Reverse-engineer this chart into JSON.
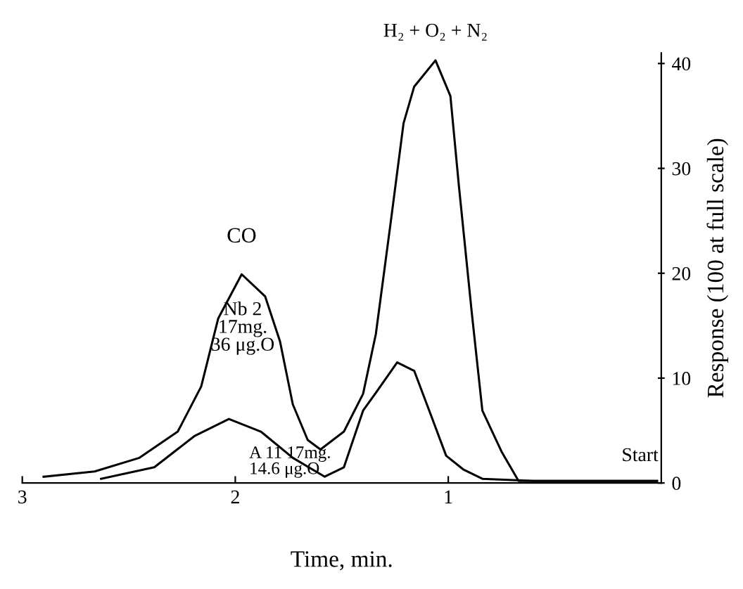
{
  "chart_data": {
    "type": "line",
    "xlabel": "Time, min.",
    "ylabel": "Response (100 at full scale)",
    "xlim": [
      3,
      0
    ],
    "ylim": [
      0,
      41
    ],
    "xticks": [
      3,
      2,
      1
    ],
    "yticks": [
      0,
      10,
      20,
      30,
      40
    ],
    "grid": false,
    "legend": false,
    "marker": "none",
    "line_style": "solid",
    "series": [
      {
        "color": "#000000",
        "x": [
          2.9,
          2.66,
          2.45,
          2.27,
          2.16,
          2.08,
          1.97,
          1.86,
          1.79,
          1.73,
          1.66,
          1.6,
          1.49,
          1.4,
          1.34,
          1.27,
          1.21,
          1.16,
          1.06,
          0.99,
          0.95,
          0.89,
          0.84,
          0.75,
          0.67,
          0.3,
          0.02
        ],
        "values": [
          0.6,
          1.1,
          2.4,
          4.9,
          9.2,
          15.7,
          19.9,
          17.8,
          13.5,
          7.5,
          4.1,
          3.2,
          4.9,
          8.5,
          14.2,
          24.9,
          34.3,
          37.8,
          40.3,
          36.9,
          28.3,
          16.3,
          6.9,
          3.0,
          0.2,
          0.2,
          0.2
        ]
      },
      {
        "color": "#000000",
        "x": [
          2.63,
          2.38,
          2.19,
          2.03,
          1.88,
          1.73,
          1.58,
          1.49,
          1.4,
          1.34,
          1.24,
          1.16,
          1.08,
          1.01,
          0.93,
          0.84,
          0.6,
          0.3,
          0.02
        ],
        "values": [
          0.4,
          1.5,
          4.5,
          6.1,
          4.9,
          2.4,
          0.6,
          1.5,
          6.9,
          8.6,
          11.5,
          10.7,
          6.4,
          2.6,
          1.3,
          0.4,
          0.2,
          0.2,
          0.2
        ]
      }
    ],
    "annotations": [
      {
        "text": "CO",
        "x": 1.97,
        "y": 19.9
      },
      "Nb 2\n17mg.\n36 μg.O",
      "A 11 17mg.\n14.6 μg.O",
      {
        "text": "H₂ + O₂ + N₂",
        "x": 1.06,
        "y": 40.3
      },
      {
        "text": "Start",
        "x": 0.1,
        "y": 0.2
      }
    ]
  }
}
